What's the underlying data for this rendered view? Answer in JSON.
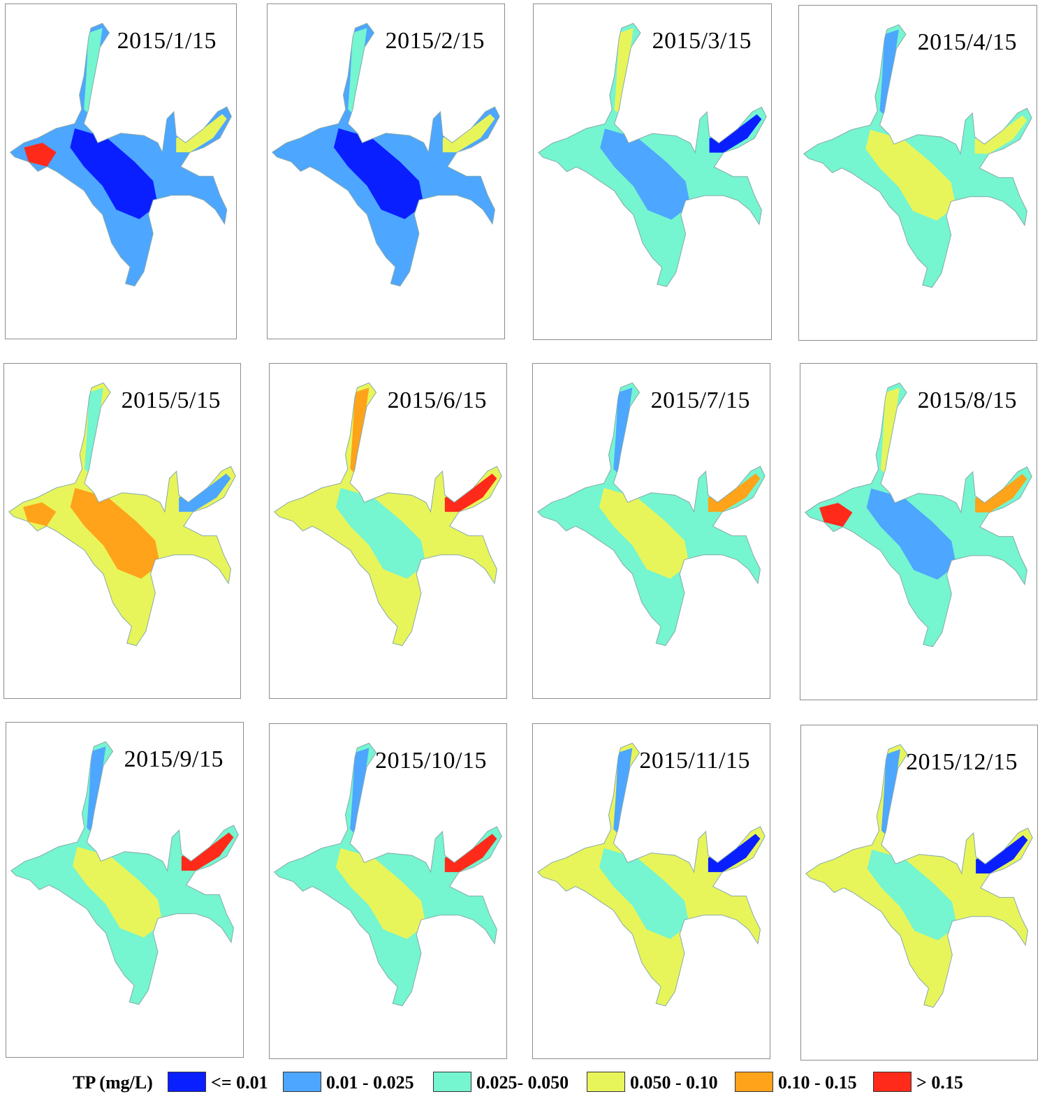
{
  "panels": [
    {
      "date": "2015/1/15",
      "base": "#4da6ff",
      "zones": [
        "#0a1fff",
        "#75f5d0",
        "#e8f55a",
        "#ff2a1a"
      ]
    },
    {
      "date": "2015/2/15",
      "base": "#4da6ff",
      "zones": [
        "#0a1fff",
        "#75f5d0",
        "#e8f55a"
      ]
    },
    {
      "date": "2015/3/15",
      "base": "#75f5d0",
      "zones": [
        "#4da6ff",
        "#e8f55a",
        "#0a1fff"
      ]
    },
    {
      "date": "2015/4/15",
      "base": "#75f5d0",
      "zones": [
        "#e8f55a",
        "#4da6ff",
        "#e8f55a"
      ]
    },
    {
      "date": "2015/5/15",
      "base": "#e8f55a",
      "zones": [
        "#ffa31a",
        "#75f5d0",
        "#4da6ff",
        "#ffa31a"
      ]
    },
    {
      "date": "2015/6/15",
      "base": "#e8f55a",
      "zones": [
        "#75f5d0",
        "#ffa31a",
        "#ff2a1a"
      ]
    },
    {
      "date": "2015/7/15",
      "base": "#75f5d0",
      "zones": [
        "#e8f55a",
        "#4da6ff",
        "#ffa31a"
      ]
    },
    {
      "date": "2015/8/15",
      "base": "#75f5d0",
      "zones": [
        "#4da6ff",
        "#e8f55a",
        "#ffa31a",
        "#ff2a1a"
      ]
    },
    {
      "date": "2015/9/15",
      "base": "#75f5d0",
      "zones": [
        "#e8f55a",
        "#4da6ff",
        "#ff2a1a"
      ]
    },
    {
      "date": "2015/10/15",
      "base": "#75f5d0",
      "zones": [
        "#e8f55a",
        "#4da6ff",
        "#ff2a1a"
      ]
    },
    {
      "date": "2015/11/15",
      "base": "#e8f55a",
      "zones": [
        "#75f5d0",
        "#4da6ff",
        "#0a1fff"
      ]
    },
    {
      "date": "2015/12/15",
      "base": "#e8f55a",
      "zones": [
        "#75f5d0",
        "#4da6ff",
        "#0a1fff"
      ]
    }
  ],
  "legend": {
    "title": "TP (mg/L)",
    "items": [
      {
        "label": "<= 0.01",
        "color": "#0a1fff"
      },
      {
        "label": "0.01 - 0.025",
        "color": "#4da6ff"
      },
      {
        "label": "0.025- 0.050",
        "color": "#75f5d0"
      },
      {
        "label": "0.050 - 0.10",
        "color": "#e8f55a"
      },
      {
        "label": "0.10 - 0.15",
        "color": "#ffa31a"
      },
      {
        "label": "> 0.15",
        "color": "#ff2a1a"
      }
    ]
  }
}
